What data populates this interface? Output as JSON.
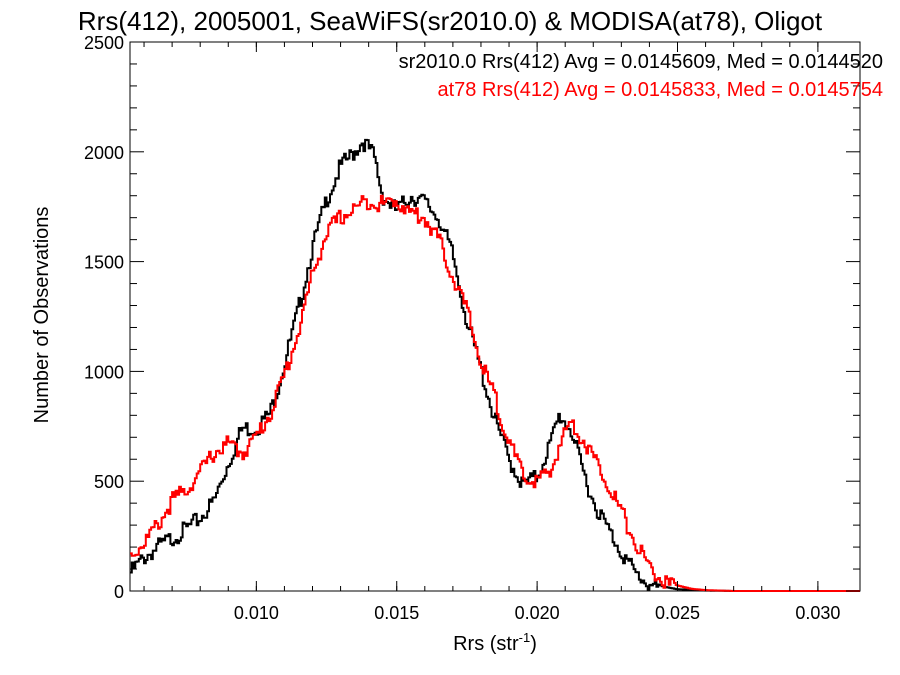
{
  "chart_data": {
    "type": "line",
    "title": "Rrs(412), 2005001, SeaWiFS(sr2010.0) & MODISA(at78), Oligot",
    "xlabel": "Rrs (str",
    "xlabel_sup": "-1",
    "xlabel_end": ")",
    "ylabel": "Number of Observations",
    "xlim": [
      0.0055,
      0.0315
    ],
    "ylim": [
      0,
      2500
    ],
    "xticks": [
      0.01,
      0.015,
      0.02,
      0.025,
      0.03
    ],
    "xtick_labels": [
      "0.010",
      "0.015",
      "0.020",
      "0.025",
      "0.030"
    ],
    "yticks": [
      0,
      500,
      1000,
      1500,
      2000,
      2500
    ],
    "ytick_labels": [
      "0",
      "500",
      "1000",
      "1500",
      "2000",
      "2500"
    ],
    "grid": false,
    "legend_position": "top-right",
    "series": [
      {
        "name": "sr2010.0 Rrs(412) Avg = 0.0145609, Med = 0.0144520",
        "color": "#000000",
        "points": [
          [
            0.0055,
            100
          ],
          [
            0.006,
            170
          ],
          [
            0.0065,
            220
          ],
          [
            0.007,
            260
          ],
          [
            0.0075,
            300
          ],
          [
            0.008,
            350
          ],
          [
            0.0085,
            430
          ],
          [
            0.009,
            600
          ],
          [
            0.0095,
            760
          ],
          [
            0.01,
            760
          ],
          [
            0.0105,
            830
          ],
          [
            0.011,
            1050
          ],
          [
            0.0115,
            1300
          ],
          [
            0.012,
            1580
          ],
          [
            0.0125,
            1800
          ],
          [
            0.013,
            1950
          ],
          [
            0.0135,
            2020
          ],
          [
            0.0138,
            2070
          ],
          [
            0.0142,
            2000
          ],
          [
            0.0145,
            1820
          ],
          [
            0.015,
            1750
          ],
          [
            0.0155,
            1820
          ],
          [
            0.016,
            1790
          ],
          [
            0.0165,
            1720
          ],
          [
            0.017,
            1550
          ],
          [
            0.0175,
            1250
          ],
          [
            0.018,
            1030
          ],
          [
            0.0185,
            800
          ],
          [
            0.019,
            620
          ],
          [
            0.0195,
            500
          ],
          [
            0.02,
            540
          ],
          [
            0.0205,
            700
          ],
          [
            0.0208,
            820
          ],
          [
            0.0212,
            760
          ],
          [
            0.0215,
            620
          ],
          [
            0.022,
            430
          ],
          [
            0.0225,
            310
          ],
          [
            0.023,
            200
          ],
          [
            0.0235,
            100
          ],
          [
            0.024,
            50
          ],
          [
            0.0245,
            20
          ],
          [
            0.025,
            8
          ],
          [
            0.026,
            2
          ],
          [
            0.027,
            0
          ],
          [
            0.0315,
            0
          ]
        ]
      },
      {
        "name": "at78 Rrs(412) Avg = 0.0145833, Med = 0.0145754",
        "color": "#ff0000",
        "points": [
          [
            0.0055,
            180
          ],
          [
            0.006,
            240
          ],
          [
            0.0065,
            320
          ],
          [
            0.007,
            430
          ],
          [
            0.0075,
            480
          ],
          [
            0.008,
            560
          ],
          [
            0.0085,
            650
          ],
          [
            0.009,
            690
          ],
          [
            0.0095,
            650
          ],
          [
            0.01,
            720
          ],
          [
            0.0105,
            830
          ],
          [
            0.011,
            1000
          ],
          [
            0.0115,
            1200
          ],
          [
            0.012,
            1460
          ],
          [
            0.0125,
            1650
          ],
          [
            0.013,
            1720
          ],
          [
            0.0135,
            1760
          ],
          [
            0.014,
            1800
          ],
          [
            0.0145,
            1780
          ],
          [
            0.015,
            1800
          ],
          [
            0.0155,
            1740
          ],
          [
            0.016,
            1720
          ],
          [
            0.0165,
            1620
          ],
          [
            0.017,
            1450
          ],
          [
            0.0175,
            1300
          ],
          [
            0.018,
            1060
          ],
          [
            0.0185,
            900
          ],
          [
            0.019,
            700
          ],
          [
            0.0195,
            540
          ],
          [
            0.02,
            520
          ],
          [
            0.0205,
            560
          ],
          [
            0.0208,
            690
          ],
          [
            0.0212,
            790
          ],
          [
            0.0215,
            740
          ],
          [
            0.022,
            630
          ],
          [
            0.0225,
            520
          ],
          [
            0.023,
            380
          ],
          [
            0.0235,
            240
          ],
          [
            0.024,
            130
          ],
          [
            0.0245,
            60
          ],
          [
            0.025,
            25
          ],
          [
            0.0255,
            10
          ],
          [
            0.026,
            4
          ],
          [
            0.027,
            0
          ],
          [
            0.0315,
            0
          ]
        ]
      }
    ]
  }
}
